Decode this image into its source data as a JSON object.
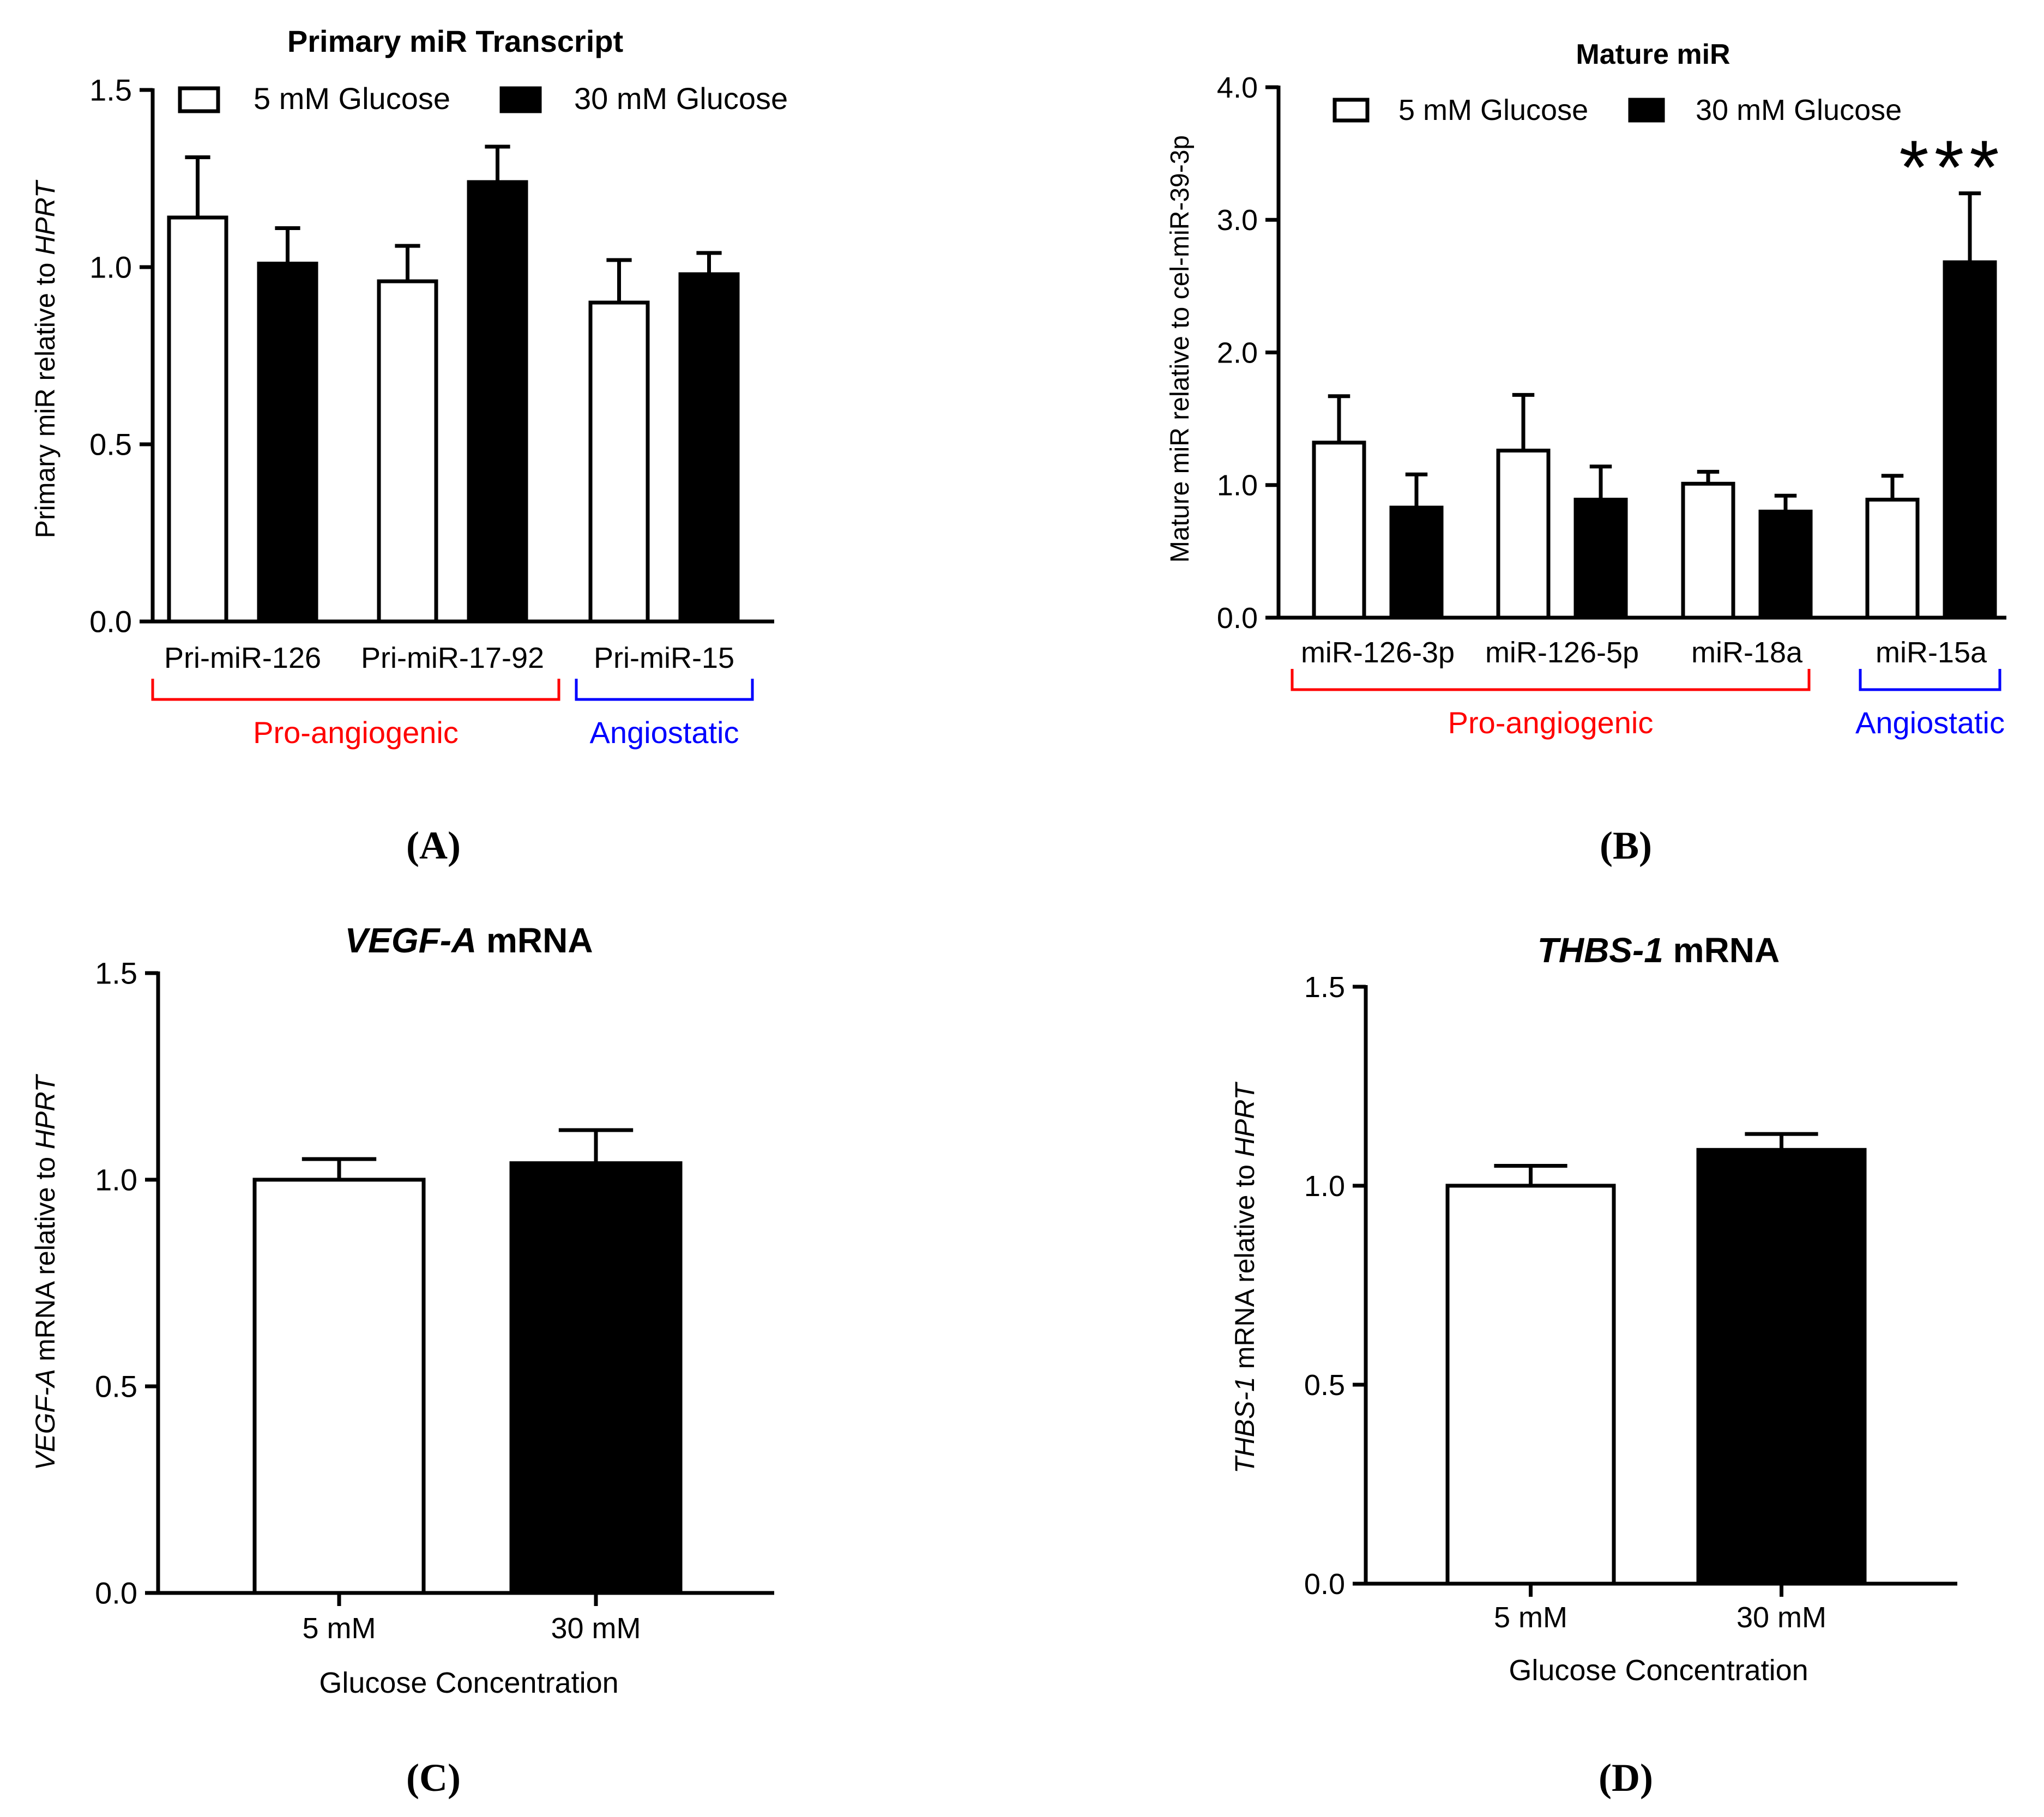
{
  "colors": {
    "axis": "#000000",
    "bar_5mM": "#ffffff",
    "bar_30mM": "#000000",
    "pro_angiogenic": "#ff0000",
    "angiostatic": "#0000ff"
  },
  "chart_data": [
    {
      "panel": "(A)",
      "type": "bar",
      "title": "Primary miR Transcript",
      "ylabel_plain": "Primary miR relative to ",
      "ylabel_italic": "HPRT",
      "xlabel": "",
      "ylim": [
        0,
        1.5
      ],
      "yticks": [
        "0.0",
        "0.5",
        "1.0",
        "1.5"
      ],
      "categories": [
        "Pri-miR-126",
        "Pri-miR-17-92",
        "Pri-miR-15"
      ],
      "legend": [
        "5 mM Glucose",
        "30 mM Glucose"
      ],
      "series": [
        {
          "name": "5 mM Glucose",
          "values": [
            1.14,
            0.96,
            0.9
          ],
          "errors": [
            0.17,
            0.1,
            0.12
          ]
        },
        {
          "name": "30 mM Glucose",
          "values": [
            1.01,
            1.24,
            0.98
          ],
          "errors": [
            0.1,
            0.1,
            0.06
          ]
        }
      ],
      "groups": [
        {
          "label": "Pro-angiogenic",
          "color": "#ff0000",
          "categories": [
            "Pri-miR-126",
            "Pri-miR-17-92"
          ]
        },
        {
          "label": "Angiostatic",
          "color": "#0000ff",
          "categories": [
            "Pri-miR-15"
          ]
        }
      ]
    },
    {
      "panel": "(B)",
      "type": "bar",
      "title": "Mature miR",
      "ylabel_plain": "Mature miR relative to cel-miR-39-3p",
      "ylabel_italic": "",
      "xlabel": "",
      "ylim": [
        0,
        4
      ],
      "yticks": [
        "0.0",
        "1.0",
        "2.0",
        "3.0",
        "4.0"
      ],
      "categories": [
        "miR-126-3p",
        "miR-126-5p",
        "miR-18a",
        "miR-15a"
      ],
      "legend": [
        "5 mM Glucose",
        "30 mM Glucose"
      ],
      "series": [
        {
          "name": "5 mM Glucose",
          "values": [
            1.32,
            1.26,
            1.01,
            0.89
          ],
          "errors": [
            0.35,
            0.42,
            0.09,
            0.18
          ]
        },
        {
          "name": "30 mM Glucose",
          "values": [
            0.83,
            0.89,
            0.8,
            2.68
          ],
          "errors": [
            0.25,
            0.25,
            0.12,
            0.52
          ]
        }
      ],
      "groups": [
        {
          "label": "Pro-angiogenic",
          "color": "#ff0000",
          "categories": [
            "miR-126-3p",
            "miR-126-5p",
            "miR-18a"
          ]
        },
        {
          "label": "Angiostatic",
          "color": "#0000ff",
          "categories": [
            "miR-15a"
          ]
        }
      ],
      "annotation": "***"
    },
    {
      "panel": "(C)",
      "type": "bar",
      "title_italic": "VEGF-A",
      "title_plain": " mRNA",
      "ylabel_italic": "VEGF-A",
      "ylabel_plain": " mRNA relative to ",
      "ylabel_italic2": "HPRT",
      "xlabel": "Glucose Concentration",
      "ylim": [
        0,
        1.5
      ],
      "yticks": [
        "0.0",
        "0.5",
        "1.0",
        "1.5"
      ],
      "categories": [
        "5 mM",
        "30 mM"
      ],
      "values": [
        1.0,
        1.04
      ],
      "errors": [
        0.05,
        0.08
      ]
    },
    {
      "panel": "(D)",
      "type": "bar",
      "title_italic": "THBS-1",
      "title_plain": " mRNA",
      "ylabel_italic": "THBS-1",
      "ylabel_plain": " mRNA relative to ",
      "ylabel_italic2": "HPRT",
      "xlabel": "Glucose Concentration",
      "ylim": [
        0,
        1.5
      ],
      "yticks": [
        "0.0",
        "0.5",
        "1.0",
        "1.5"
      ],
      "categories": [
        "5 mM",
        "30 mM"
      ],
      "values": [
        1.0,
        1.09
      ],
      "errors": [
        0.05,
        0.04
      ]
    }
  ]
}
